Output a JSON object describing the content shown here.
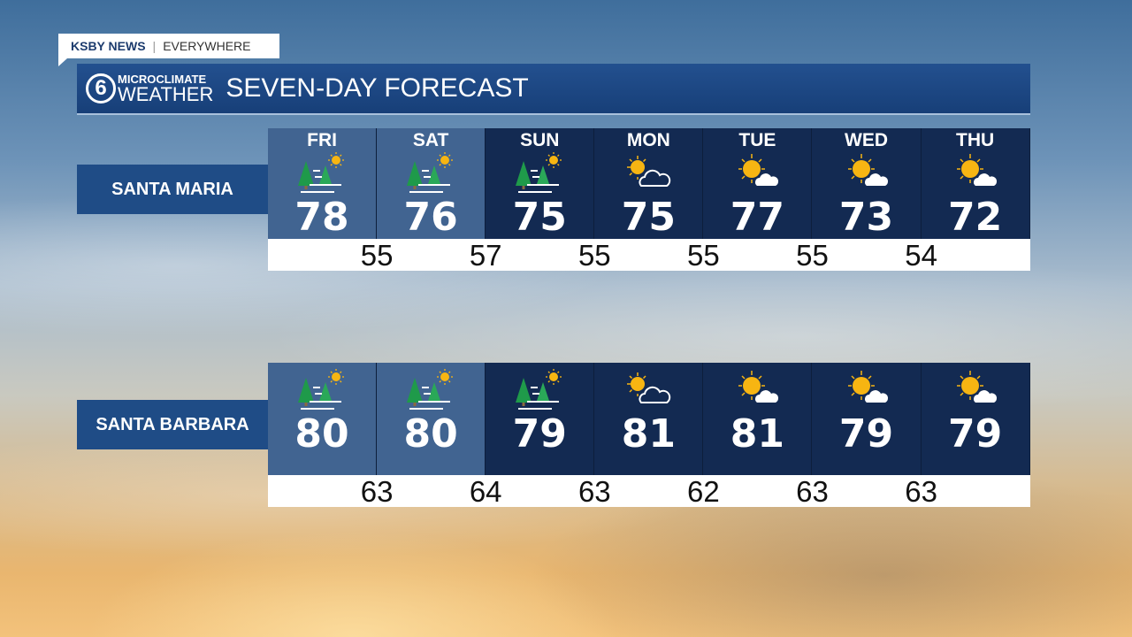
{
  "brand": {
    "name": "KSBY NEWS",
    "tagline": "EVERYWHERE"
  },
  "header": {
    "logo_top": "MICROCLIMATE",
    "logo_bottom": "WEATHER",
    "logo_mark": "6",
    "title": "SEVEN-DAY FORECAST"
  },
  "days": [
    "FRI",
    "SAT",
    "SUN",
    "MON",
    "TUE",
    "WED",
    "THU"
  ],
  "locations": [
    {
      "name": "SANTA MARIA",
      "highs": [
        "78",
        "76",
        "75",
        "75",
        "77",
        "73",
        "72"
      ],
      "lows": [
        "55",
        "57",
        "55",
        "55",
        "55",
        "54"
      ],
      "icons": [
        "haze-trees-sun",
        "haze-trees-sun",
        "haze-trees-sun",
        "sun-cloud-outline",
        "sun-cloud",
        "sun-cloud",
        "sun-cloud"
      ]
    },
    {
      "name": "SANTA BARBARA",
      "highs": [
        "80",
        "80",
        "79",
        "81",
        "81",
        "79",
        "79"
      ],
      "lows": [
        "63",
        "64",
        "63",
        "62",
        "63",
        "63"
      ],
      "icons": [
        "haze-trees-sun",
        "haze-trees-sun",
        "haze-trees-sun",
        "sun-cloud-outline",
        "sun-cloud",
        "sun-cloud",
        "sun-cloud"
      ]
    }
  ],
  "shades": [
    "light",
    "light",
    "dark",
    "dark",
    "dark",
    "dark",
    "dark"
  ],
  "colors": {
    "light": "#416491",
    "dark": "#132a52",
    "header": "#1f4c86",
    "sun": "#f7b512",
    "tree": "#1f9a4a"
  }
}
